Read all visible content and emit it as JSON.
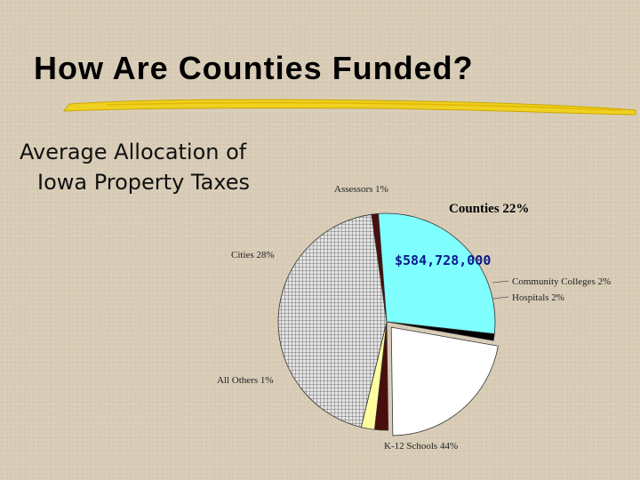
{
  "slide": {
    "title": "How Are Counties Funded?",
    "subtitle_line1": "Average Allocation of",
    "subtitle_line2": "Iowa Property Taxes"
  },
  "chart_data": {
    "type": "pie",
    "title": "",
    "center_annotation": "$584,728,000",
    "slices": [
      {
        "label": "Counties  22%",
        "value": 22,
        "color": "#ffffff",
        "pattern": "none",
        "emphasis": true
      },
      {
        "label": "Community Colleges  2%",
        "value": 2,
        "color": "#4a0e0e",
        "pattern": "none"
      },
      {
        "label": "Hospitals  2%",
        "value": 2,
        "color": "#ffffa0",
        "pattern": "none"
      },
      {
        "label": "K-12 Schools  44%",
        "value": 44,
        "color": "#d8d8d8",
        "pattern": "grid"
      },
      {
        "label": "All Others  1%",
        "value": 1,
        "color": "#4a0e0e",
        "pattern": "none"
      },
      {
        "label": "Cities  28%",
        "value": 28,
        "color": "#80ffff",
        "pattern": "none"
      },
      {
        "label": "Assessors  1%",
        "value": 1,
        "color": "#000000",
        "pattern": "none"
      }
    ]
  }
}
